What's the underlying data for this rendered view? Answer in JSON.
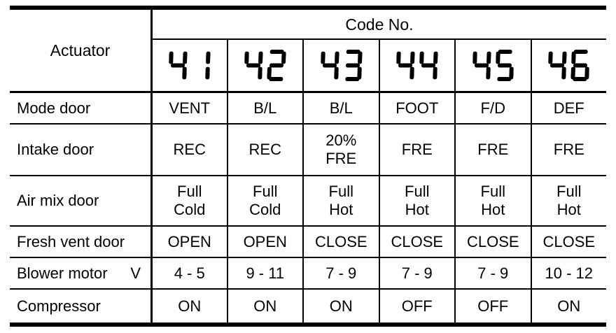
{
  "table": {
    "header": {
      "actuator_label": "Actuator",
      "code_label": "Code No.",
      "codes": [
        "41",
        "42",
        "43",
        "44",
        "45",
        "46"
      ]
    },
    "rows": [
      {
        "label": "Mode door",
        "unit": "",
        "values": [
          "VENT",
          "B/L",
          "B/L",
          "FOOT",
          "F/D",
          "DEF"
        ]
      },
      {
        "label": "Intake door",
        "unit": "",
        "values": [
          "REC",
          "REC",
          "20%\nFRE",
          "FRE",
          "FRE",
          "FRE"
        ]
      },
      {
        "label": "Air mix door",
        "unit": "",
        "values": [
          "Full\nCold",
          "Full\nCold",
          "Full\nHot",
          "Full\nHot",
          "Full\nHot",
          "Full\nHot"
        ]
      },
      {
        "label": "Fresh vent door",
        "unit": "",
        "values": [
          "OPEN",
          "OPEN",
          "CLOSE",
          "CLOSE",
          "CLOSE",
          "CLOSE"
        ]
      },
      {
        "label": "Blower motor",
        "unit": "V",
        "values": [
          "4 - 5",
          "9 - 11",
          "7 - 9",
          "7 - 9",
          "7 - 9",
          "10 - 12"
        ]
      },
      {
        "label": "Compressor",
        "unit": "",
        "values": [
          "ON",
          "ON",
          "ON",
          "OFF",
          "OFF",
          "ON"
        ]
      }
    ],
    "colors": {
      "ink": "#000000",
      "paper": "#ffffff"
    }
  }
}
